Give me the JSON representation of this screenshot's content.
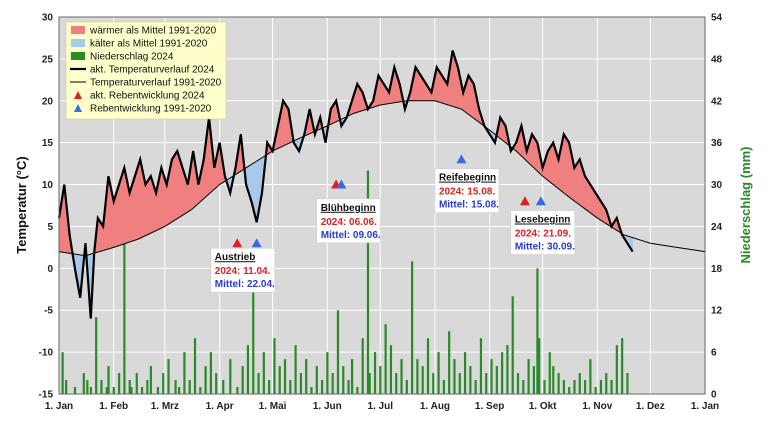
{
  "chart_data": {
    "type": "line",
    "title": "",
    "ylabel": "Temperatur (°C)",
    "y2label": "Niederschlag (mm)",
    "ylim": [
      -15,
      30
    ],
    "y2lim": [
      0,
      54
    ],
    "yticks": [
      -15,
      -10,
      -5,
      0,
      5,
      10,
      15,
      20,
      25,
      30
    ],
    "y2ticks": [
      0,
      6,
      12,
      18,
      24,
      30,
      36,
      42,
      48,
      54
    ],
    "xlim": [
      0,
      366
    ],
    "xticks": [
      {
        "day": 0,
        "label": "1. Jan"
      },
      {
        "day": 31,
        "label": "1. Feb"
      },
      {
        "day": 60,
        "label": "1. Mrz"
      },
      {
        "day": 91,
        "label": "1. Apr"
      },
      {
        "day": 121,
        "label": "1. Mai"
      },
      {
        "day": 152,
        "label": "1. Jun"
      },
      {
        "day": 182,
        "label": "1. Jul"
      },
      {
        "day": 213,
        "label": "1. Aug"
      },
      {
        "day": 244,
        "label": "1. Sep"
      },
      {
        "day": 274,
        "label": "1. Okt"
      },
      {
        "day": 305,
        "label": "1. Nov"
      },
      {
        "day": 335,
        "label": "1. Dez"
      },
      {
        "day": 366,
        "label": "1. Jan"
      }
    ],
    "grid": true,
    "legend_position": "top-left",
    "legend": [
      {
        "label": "wärmer als Mittel 1991-2020",
        "kind": "fill",
        "color": "#f08080"
      },
      {
        "label": "kälter als Mittel 1991-2020",
        "kind": "fill",
        "color": "#a8c8ec"
      },
      {
        "label": "Niederschlag 2024",
        "kind": "fill",
        "color": "#2a8a2a"
      },
      {
        "label": "akt. Temperaturverlauf 2024",
        "kind": "line-thick",
        "color": "#000000"
      },
      {
        "label": "Temperaturverlauf 1991-2020",
        "kind": "line-thin",
        "color": "#000000"
      },
      {
        "label": "akt. Rebentwicklung 2024",
        "kind": "triangle",
        "color": "#e02020"
      },
      {
        "label": "Rebentwicklung 1991-2020",
        "kind": "triangle",
        "color": "#3a6ae0"
      }
    ],
    "series": [
      {
        "name": "akt. Temperaturverlauf 2024",
        "x": [
          0,
          3,
          6,
          9,
          12,
          15,
          18,
          20,
          22,
          25,
          28,
          31,
          34,
          37,
          40,
          43,
          46,
          49,
          52,
          55,
          58,
          61,
          64,
          67,
          70,
          73,
          76,
          79,
          82,
          85,
          88,
          91,
          94,
          97,
          100,
          103,
          106,
          109,
          112,
          115,
          118,
          121,
          124,
          127,
          130,
          133,
          136,
          139,
          142,
          145,
          148,
          151,
          154,
          157,
          160,
          163,
          166,
          169,
          172,
          175,
          178,
          181,
          184,
          187,
          190,
          193,
          196,
          199,
          202,
          205,
          208,
          211,
          214,
          217,
          220,
          223,
          226,
          229,
          232,
          235,
          238,
          241,
          244,
          247,
          250,
          253,
          256,
          259,
          262,
          265,
          268,
          271,
          274,
          277,
          280,
          283,
          286,
          289,
          292,
          295,
          298,
          301,
          304,
          307,
          310,
          313,
          316,
          319,
          322,
          325
        ],
        "y": [
          6,
          10,
          4,
          0,
          -3.5,
          3,
          -6,
          2,
          6,
          5,
          11,
          8,
          10,
          12,
          9,
          11,
          13,
          10,
          11,
          9,
          12,
          10,
          13,
          14,
          12,
          10,
          14,
          10,
          13,
          18,
          12,
          15,
          11,
          9,
          12,
          16,
          10,
          8,
          5.5,
          9,
          15,
          14,
          17,
          20,
          19,
          15,
          14,
          16,
          19,
          16,
          18,
          15,
          19,
          20,
          17,
          18,
          20,
          22,
          21,
          19,
          20,
          23,
          22,
          21,
          24,
          22,
          19,
          21,
          24,
          23,
          22,
          21,
          24,
          23,
          22,
          26,
          24,
          21,
          23,
          22,
          19,
          17,
          16,
          15,
          18,
          17,
          14,
          15,
          17,
          14,
          16,
          15,
          12,
          14,
          15,
          13,
          16,
          15,
          12,
          13,
          11,
          10,
          9,
          8,
          7,
          5,
          6,
          4,
          3,
          2
        ]
      },
      {
        "name": "Temperaturverlauf 1991-2020",
        "x": [
          0,
          15,
          31,
          45,
          60,
          75,
          91,
          106,
          121,
          136,
          152,
          167,
          182,
          197,
          213,
          228,
          244,
          259,
          274,
          289,
          305,
          320,
          335,
          350,
          366
        ],
        "y": [
          2,
          1.5,
          2.5,
          3.5,
          5,
          7,
          10,
          12,
          14,
          15.5,
          17,
          18.5,
          19.5,
          20,
          20,
          19,
          16.5,
          14,
          11,
          8.5,
          6,
          4,
          3,
          2.5,
          2
        ]
      }
    ],
    "precipitation": {
      "name": "Niederschlag 2024",
      "unit": "mm",
      "days": [
        2,
        4,
        9,
        14,
        16,
        18,
        21,
        24,
        27,
        28,
        31,
        34,
        37,
        40,
        41,
        44,
        47,
        50,
        52,
        56,
        59,
        62,
        66,
        68,
        71,
        74,
        77,
        80,
        83,
        86,
        89,
        93,
        97,
        101,
        104,
        107,
        110,
        113,
        116,
        119,
        122,
        125,
        128,
        131,
        134,
        137,
        140,
        143,
        146,
        149,
        152,
        155,
        158,
        161,
        164,
        166,
        169,
        172,
        175,
        176,
        179,
        182,
        185,
        188,
        191,
        194,
        197,
        200,
        203,
        206,
        209,
        212,
        215,
        218,
        221,
        224,
        227,
        230,
        233,
        236,
        239,
        242,
        245,
        248,
        251,
        254,
        257,
        260,
        263,
        266,
        269,
        271,
        272,
        275,
        278,
        280,
        283,
        286,
        289,
        292,
        295,
        298,
        301,
        304,
        307,
        310,
        313,
        316,
        319,
        322
      ],
      "values": [
        6,
        2,
        1,
        3,
        2,
        1,
        11,
        2,
        1,
        4,
        1,
        3,
        22,
        2,
        1,
        3,
        1,
        2,
        4,
        1,
        3,
        5,
        2,
        1,
        6,
        2,
        8,
        1,
        4,
        6,
        3,
        2,
        5,
        1,
        4,
        7,
        20,
        3,
        6,
        2,
        8,
        4,
        5,
        2,
        7,
        3,
        5,
        1,
        4,
        2,
        6,
        3,
        12,
        4,
        2,
        5,
        1,
        8,
        32,
        3,
        6,
        4,
        10,
        7,
        3,
        5,
        2,
        19,
        5,
        4,
        8,
        3,
        6,
        2,
        9,
        5,
        3,
        6,
        4,
        2,
        8,
        3,
        5,
        4,
        6,
        7,
        14,
        3,
        2,
        5,
        4,
        18,
        8,
        2,
        6,
        4,
        3,
        2,
        1,
        2,
        3,
        2,
        5,
        1,
        2,
        3,
        2,
        7,
        8,
        3
      ]
    },
    "markers": [
      {
        "day": 101,
        "temp": 3,
        "color": "#e02020"
      },
      {
        "day": 112,
        "temp": 3,
        "color": "#3a6ae0"
      },
      {
        "day": 157,
        "temp": 10,
        "color": "#e02020"
      },
      {
        "day": 160,
        "temp": 10,
        "color": "#3a6ae0"
      },
      {
        "day": 228,
        "temp": 13,
        "color": "#3a6ae0"
      },
      {
        "day": 264,
        "temp": 8,
        "color": "#e02020"
      },
      {
        "day": 273,
        "temp": 8,
        "color": "#3a6ae0"
      }
    ],
    "annotations": [
      {
        "title": "Austrieb",
        "line2024": "2024:     11.04.",
        "lineMittel": "Mittel: 22.04.",
        "day": 86,
        "temp": 2.4
      },
      {
        "title": "Blühbeginn",
        "line2024": "2024:     06.06.",
        "lineMittel": "Mittel: 09.06.",
        "day": 146,
        "temp": 8.3
      },
      {
        "title": "Reifebeginn",
        "line2024": "2024:     15.08.",
        "lineMittel": "Mittel: 15.08.",
        "day": 213,
        "temp": 11.9
      },
      {
        "title": "Lesebeginn",
        "line2024": "2024:     21.09.",
        "lineMittel": "Mittel: 30.09.",
        "day": 256,
        "temp": 6.9
      }
    ]
  }
}
